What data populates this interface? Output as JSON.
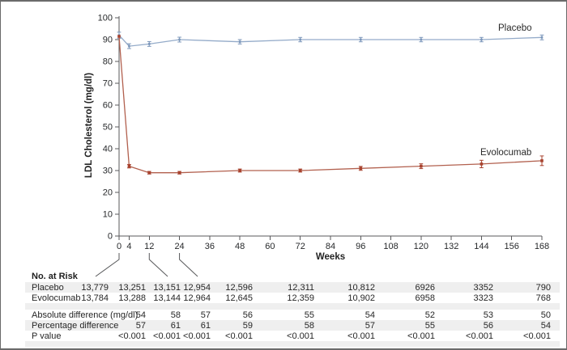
{
  "figure": {
    "background": "#ffffff",
    "frame_color": "#6a6a6a",
    "axis_color": "#58595b",
    "text_color": "#262626"
  },
  "chart_data": {
    "type": "line",
    "title": "",
    "xlabel": "Weeks",
    "ylabel": "LDL Cholesterol (mg/dl)",
    "xlim": [
      0,
      168
    ],
    "ylim": [
      0,
      100
    ],
    "x_ticks": [
      0,
      4,
      12,
      24,
      36,
      48,
      60,
      72,
      84,
      96,
      108,
      120,
      132,
      144,
      156,
      168
    ],
    "y_ticks": [
      0,
      10,
      20,
      30,
      40,
      50,
      60,
      70,
      80,
      90,
      100
    ],
    "grid": false,
    "legend_position": "inline-end-labels",
    "x": [
      0,
      4,
      12,
      24,
      48,
      72,
      96,
      120,
      144,
      168
    ],
    "series": [
      {
        "name": "Placebo",
        "color": "#94abc9",
        "marker_color": "#7b96ba",
        "values": [
          92,
          87,
          88,
          90,
          89,
          90,
          90,
          90,
          90,
          91
        ],
        "stderr": [
          1.4,
          1.1,
          1.1,
          1.1,
          1.0,
          1.0,
          1.0,
          1.0,
          1.0,
          1.1
        ]
      },
      {
        "name": "Evolocumab",
        "color": "#b2604e",
        "marker_color": "#a8432f",
        "values": [
          91.5,
          32,
          29,
          29,
          30,
          30,
          31,
          32,
          33,
          34.5
        ],
        "stderr": [
          0,
          0.8,
          0.6,
          0.6,
          0.7,
          0.7,
          0.9,
          1.1,
          1.7,
          2.2
        ]
      }
    ],
    "callout_weeks": [
      0,
      12,
      24
    ]
  },
  "table": {
    "header": "No. at Risk",
    "week_columns": [
      0,
      4,
      12,
      24,
      48,
      72,
      96,
      120,
      144,
      168
    ],
    "shade_color": "#efefef",
    "rows": [
      {
        "label": "Placebo",
        "values": [
          "13,779",
          "13,251",
          "13,151",
          "12,954",
          "12,596",
          "12,311",
          "10,812",
          "6926",
          "3352",
          "790"
        ]
      },
      {
        "label": "Evolocumab",
        "values": [
          "13,784",
          "13,288",
          "13,144",
          "12,964",
          "12,645",
          "12,359",
          "10,902",
          "6958",
          "3323",
          "768"
        ]
      }
    ],
    "stats_rows": [
      {
        "label": "Absolute difference (mg/dl)",
        "values": [
          "",
          "54",
          "58",
          "57",
          "56",
          "55",
          "54",
          "52",
          "53",
          "50"
        ]
      },
      {
        "label": "Percentage difference",
        "values": [
          "",
          "57",
          "61",
          "61",
          "59",
          "58",
          "57",
          "55",
          "56",
          "54"
        ]
      },
      {
        "label": "P value",
        "values": [
          "",
          "<0.001",
          "<0.001",
          "<0.001",
          "<0.001",
          "<0.001",
          "<0.001",
          "<0.001",
          "<0.001",
          "<0.001"
        ]
      }
    ]
  }
}
